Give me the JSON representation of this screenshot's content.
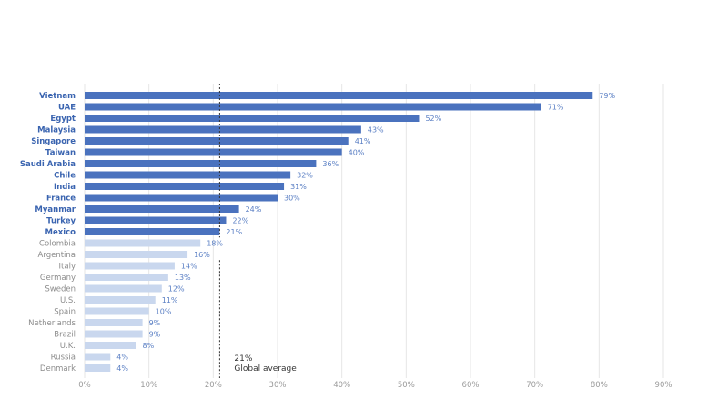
{
  "chart_data": {
    "type": "bar",
    "orientation": "horizontal",
    "categories": [
      "Vietnam",
      "UAE",
      "Egypt",
      "Malaysia",
      "Singapore",
      "Taiwan",
      "Saudi Arabia",
      "Chile",
      "India",
      "France",
      "Myanmar",
      "Turkey",
      "Mexico",
      "Colombia",
      "Argentina",
      "Italy",
      "Germany",
      "Sweden",
      "U.S.",
      "Spain",
      "Netherlands",
      "Brazil",
      "U.K.",
      "Russia",
      "Denmark"
    ],
    "values": [
      79,
      71,
      52,
      43,
      41,
      40,
      36,
      32,
      31,
      30,
      24,
      22,
      21,
      18,
      16,
      14,
      13,
      12,
      11,
      10,
      9,
      9,
      8,
      4,
      4
    ],
    "value_labels": [
      "79%",
      "71%",
      "52%",
      "43%",
      "41%",
      "40%",
      "36%",
      "32%",
      "31%",
      "30%",
      "24%",
      "22%",
      "21%",
      "18%",
      "16%",
      "14%",
      "13%",
      "12%",
      "11%",
      "10%",
      "9%",
      "9%",
      "8%",
      "4%",
      "4%"
    ],
    "highlight_count": 13,
    "xlim": [
      0,
      90
    ],
    "xticks": [
      0,
      10,
      20,
      30,
      40,
      50,
      60,
      70,
      80,
      90
    ],
    "xtick_labels": [
      "0%",
      "10%",
      "20%",
      "30%",
      "40%",
      "50%",
      "60%",
      "70%",
      "80%",
      "90%"
    ],
    "grid": true,
    "reference_line": {
      "value": 21,
      "label_value": "21%",
      "label_text": "Global average"
    },
    "colors": {
      "above": "#4a72be",
      "below": "#c9d7ee",
      "label_above": "#3a64b0",
      "label_below": "#8c8c8c",
      "value_text": "#5a7fc4",
      "grid": "#e6e6e6",
      "ref_line": "#333333"
    }
  }
}
